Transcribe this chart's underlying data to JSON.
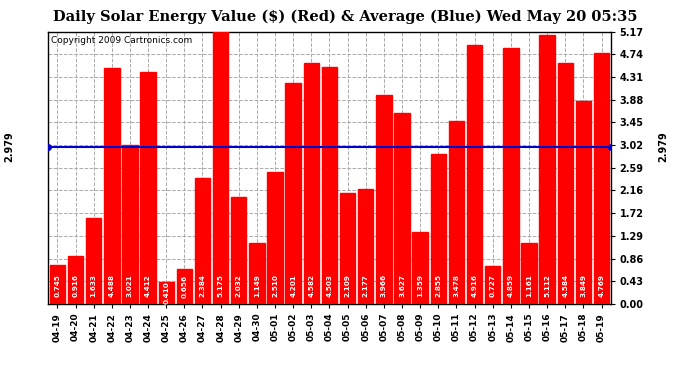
{
  "title": "Daily Solar Energy Value ($) (Red) & Average (Blue) Wed May 20 05:35",
  "copyright": "Copyright 2009 Cartronics.com",
  "categories": [
    "04-19",
    "04-20",
    "04-21",
    "04-22",
    "04-23",
    "04-24",
    "04-25",
    "04-26",
    "04-27",
    "04-28",
    "04-29",
    "04-30",
    "05-01",
    "05-02",
    "05-03",
    "05-04",
    "05-05",
    "05-06",
    "05-07",
    "05-08",
    "05-09",
    "05-10",
    "05-11",
    "05-12",
    "05-13",
    "05-14",
    "05-15",
    "05-16",
    "05-17",
    "05-18",
    "05-19"
  ],
  "values": [
    0.745,
    0.916,
    1.633,
    4.488,
    3.021,
    4.412,
    0.41,
    0.656,
    2.384,
    5.175,
    2.032,
    1.149,
    2.51,
    4.201,
    4.582,
    4.503,
    2.109,
    2.177,
    3.966,
    3.627,
    1.359,
    2.855,
    3.478,
    4.916,
    0.727,
    4.859,
    1.161,
    5.112,
    4.584,
    3.849,
    4.769
  ],
  "average": 2.979,
  "bar_color": "#ff0000",
  "avg_line_color": "#0000cc",
  "background_color": "#ffffff",
  "plot_bg_color": "#ffffff",
  "grid_color": "#aaaaaa",
  "ylim": [
    0.0,
    5.17
  ],
  "yticks": [
    0.0,
    0.43,
    0.86,
    1.29,
    1.72,
    2.16,
    2.59,
    3.02,
    3.45,
    3.88,
    4.31,
    4.74,
    5.17
  ],
  "avg_label": "2.979",
  "bar_label_color": "#ffffff",
  "bar_label_fontsize": 5.2,
  "title_fontsize": 10.5,
  "copyright_fontsize": 6.5
}
